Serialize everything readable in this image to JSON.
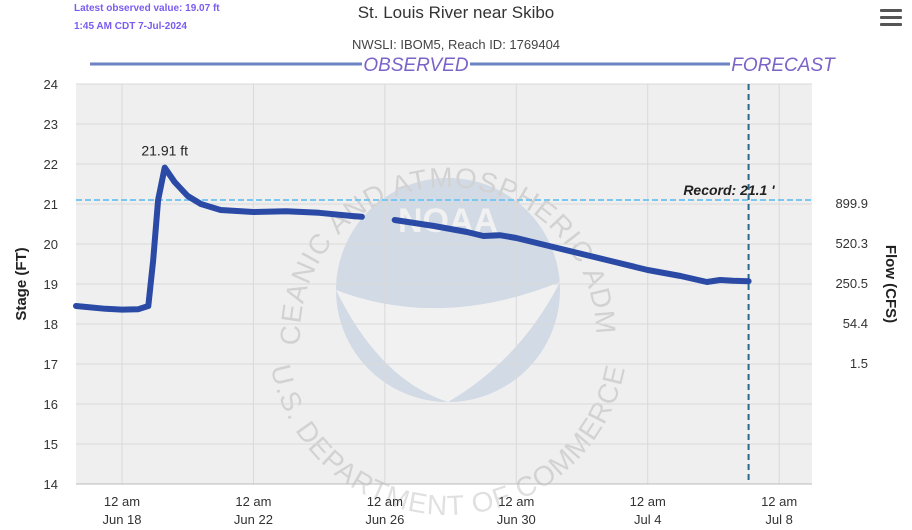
{
  "header": {
    "latest_label": "Latest observed value: 19.07 ft",
    "latest_time": "1:45 AM CDT 7-Jul-2024",
    "title": "St. Louis River near Skibo",
    "subtitle": "NWSLI: IBOM5, Reach ID: 1769404",
    "menu_icon": "hamburger-menu-icon"
  },
  "watermark": {
    "top_text": "NATIONAL OCEANIC AND ATMOSPHERIC ADMINISTRATION",
    "bottom_text": "U.S. DEPARTMENT OF COMMERCE",
    "logo_text": "NOAA"
  },
  "chart_data": {
    "type": "line",
    "ylabel": "Stage (FT)",
    "ylabel_right": "Flow (CFS)",
    "ylim": [
      14,
      24
    ],
    "yticks": [
      14,
      15,
      16,
      17,
      18,
      19,
      20,
      21,
      22,
      23,
      24
    ],
    "flow_ticks": [
      {
        "stage": 21,
        "label": "899.9"
      },
      {
        "stage": 20,
        "label": "520.3"
      },
      {
        "stage": 19,
        "label": "250.5"
      },
      {
        "stage": 18,
        "label": "54.4"
      },
      {
        "stage": 17,
        "label": "1.5"
      }
    ],
    "x_ticks": [
      {
        "day": 0,
        "line1": "12 am",
        "line2": "Jun 18"
      },
      {
        "day": 4,
        "line1": "12 am",
        "line2": "Jun 22"
      },
      {
        "day": 8,
        "line1": "12 am",
        "line2": "Jun 26"
      },
      {
        "day": 12,
        "line1": "12 am",
        "line2": "Jun 30"
      },
      {
        "day": 16,
        "line1": "12 am",
        "line2": "Jul 4"
      },
      {
        "day": 20,
        "line1": "12 am",
        "line2": "Jul 8"
      }
    ],
    "x_range_days": [
      -1.4,
      21
    ],
    "observed_label": "OBSERVED",
    "forecast_label": "FORECAST",
    "current_time_day": 19.07,
    "record": {
      "value": 21.1,
      "label": "Record: 21.1 '"
    },
    "peak": {
      "day": 1.3,
      "value": 21.91,
      "label": "21.91 ft"
    },
    "series": [
      {
        "name": "",
        "color": "#2a4aa6",
        "points": [
          [
            -1.4,
            18.45
          ],
          [
            -1.0,
            18.42
          ],
          [
            -0.5,
            18.38
          ],
          [
            0.0,
            18.36
          ],
          [
            0.5,
            18.37
          ],
          [
            0.8,
            18.45
          ],
          [
            0.95,
            19.6
          ],
          [
            1.1,
            21.1
          ],
          [
            1.3,
            21.91
          ],
          [
            1.6,
            21.55
          ],
          [
            2.0,
            21.2
          ],
          [
            2.4,
            21.0
          ],
          [
            3.0,
            20.85
          ],
          [
            4.0,
            20.8
          ],
          [
            5.0,
            20.82
          ],
          [
            6.0,
            20.78
          ],
          [
            7.0,
            20.7
          ],
          [
            7.3,
            20.68
          ],
          null,
          [
            8.3,
            20.6
          ],
          [
            9.5,
            20.45
          ],
          [
            10.5,
            20.3
          ],
          [
            11.0,
            20.2
          ],
          [
            11.5,
            20.22
          ],
          [
            12.0,
            20.15
          ],
          [
            13.0,
            19.95
          ],
          [
            14.0,
            19.75
          ],
          [
            15.0,
            19.55
          ],
          [
            16.0,
            19.35
          ],
          [
            17.0,
            19.2
          ],
          [
            17.8,
            19.05
          ],
          [
            18.2,
            19.1
          ],
          [
            18.6,
            19.08
          ],
          [
            19.07,
            19.07
          ]
        ]
      }
    ]
  }
}
